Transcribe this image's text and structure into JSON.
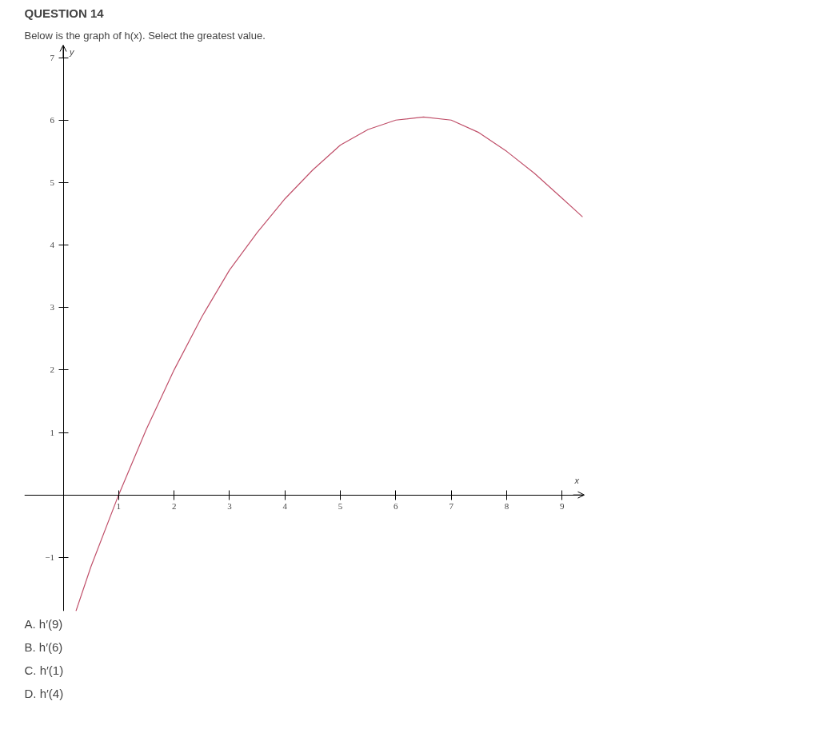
{
  "chart_data": {
    "type": "line",
    "title": "QUESTION 14",
    "subtitle": "Below is the graph of h(x).  Select the greatest value.",
    "xlabel": "x",
    "ylabel": "y",
    "x": [
      0.23,
      0.5,
      1,
      1.5,
      2,
      2.5,
      3,
      3.5,
      4,
      4.5,
      5,
      5.5,
      6,
      6.5,
      7,
      7.5,
      8,
      8.5,
      9,
      9.37
    ],
    "series": [
      {
        "color": "#c0506a",
        "values": [
          -1.86,
          -1.15,
          0,
          1.05,
          2.0,
          2.85,
          3.6,
          4.2,
          4.74,
          5.2,
          5.6,
          5.85,
          6.0,
          6.05,
          6.0,
          5.8,
          5.5,
          5.15,
          4.75,
          4.45
        ]
      }
    ],
    "xlim": [
      -0.7,
      9.4
    ],
    "ylim": [
      -1.86,
      7.2
    ],
    "xticks": [
      1,
      2,
      3,
      4,
      5,
      6,
      7,
      8,
      9
    ],
    "yticks": [
      -1,
      1,
      2,
      3,
      4,
      5,
      6,
      7
    ],
    "grid": false,
    "marker": "none",
    "line_style": "solid",
    "annotations": [
      "A. h′(9)",
      "B. h′(6)",
      "C. h′(1)",
      "D. h′(4)"
    ]
  }
}
